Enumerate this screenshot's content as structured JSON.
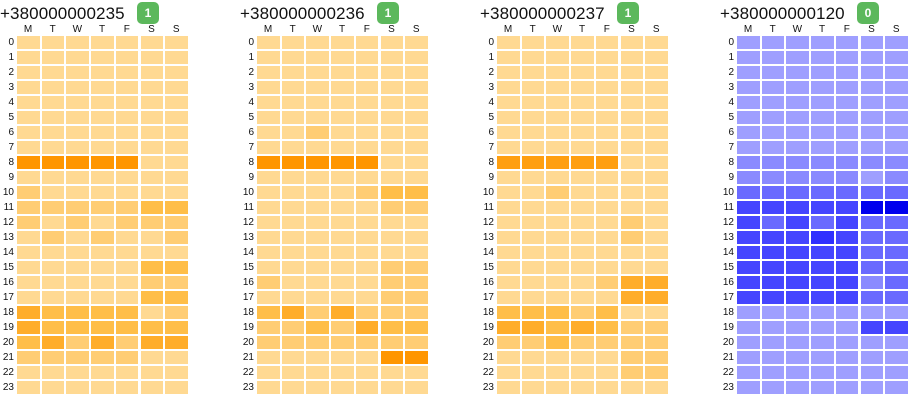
{
  "days": [
    "M",
    "T",
    "W",
    "T",
    "F",
    "S",
    "S"
  ],
  "hours": [
    "0",
    "1",
    "2",
    "3",
    "4",
    "5",
    "6",
    "7",
    "8",
    "9",
    "10",
    "11",
    "12",
    "13",
    "14",
    "15",
    "16",
    "17",
    "18",
    "19",
    "20",
    "21",
    "22",
    "23"
  ],
  "panels": [
    {
      "phone": "+380000000235",
      "count": "1",
      "badge_color": "#5cb85c",
      "palette": "orange",
      "levels": [
        [
          1,
          1,
          1,
          1,
          1,
          1,
          1
        ],
        [
          1,
          1,
          1,
          1,
          1,
          1,
          1
        ],
        [
          1,
          1,
          1,
          1,
          1,
          1,
          1
        ],
        [
          1,
          1,
          1,
          1,
          1,
          1,
          1
        ],
        [
          1,
          1,
          1,
          1,
          1,
          1,
          1
        ],
        [
          1,
          1,
          1,
          1,
          1,
          1,
          1
        ],
        [
          1,
          1,
          1,
          1,
          1,
          1,
          1
        ],
        [
          1,
          1,
          1,
          1,
          1,
          1,
          1
        ],
        [
          6,
          6,
          6,
          6,
          6,
          1,
          1
        ],
        [
          1,
          1,
          1,
          1,
          1,
          1,
          1
        ],
        [
          2,
          1,
          1,
          1,
          1,
          1,
          1
        ],
        [
          2,
          2,
          2,
          2,
          2,
          3,
          3
        ],
        [
          2,
          1,
          2,
          1,
          2,
          2,
          2
        ],
        [
          1,
          2,
          1,
          2,
          1,
          1,
          2
        ],
        [
          1,
          1,
          1,
          1,
          1,
          1,
          1
        ],
        [
          1,
          1,
          1,
          1,
          1,
          3,
          3
        ],
        [
          1,
          1,
          1,
          1,
          1,
          2,
          2
        ],
        [
          1,
          1,
          1,
          1,
          1,
          3,
          3
        ],
        [
          4,
          3,
          3,
          3,
          3,
          1,
          2
        ],
        [
          4,
          3,
          3,
          3,
          3,
          3,
          3
        ],
        [
          3,
          4,
          2,
          4,
          2,
          4,
          4
        ],
        [
          2,
          2,
          2,
          2,
          2,
          1,
          1
        ],
        [
          1,
          1,
          1,
          1,
          1,
          1,
          1
        ],
        [
          1,
          1,
          1,
          1,
          1,
          1,
          1
        ]
      ]
    },
    {
      "phone": "+380000000236",
      "count": "1",
      "badge_color": "#5cb85c",
      "palette": "orange",
      "levels": [
        [
          1,
          1,
          1,
          1,
          1,
          1,
          1
        ],
        [
          1,
          1,
          1,
          1,
          1,
          1,
          1
        ],
        [
          1,
          1,
          1,
          1,
          1,
          1,
          1
        ],
        [
          1,
          1,
          1,
          1,
          1,
          1,
          1
        ],
        [
          1,
          1,
          1,
          1,
          1,
          1,
          1
        ],
        [
          1,
          1,
          1,
          1,
          1,
          1,
          1
        ],
        [
          1,
          1,
          2,
          1,
          1,
          1,
          1
        ],
        [
          1,
          1,
          1,
          1,
          1,
          1,
          1
        ],
        [
          6,
          6,
          6,
          6,
          6,
          1,
          1
        ],
        [
          1,
          1,
          1,
          1,
          1,
          1,
          1
        ],
        [
          1,
          1,
          1,
          1,
          2,
          3,
          3
        ],
        [
          1,
          1,
          1,
          1,
          1,
          2,
          2
        ],
        [
          1,
          1,
          1,
          1,
          1,
          1,
          1
        ],
        [
          1,
          1,
          1,
          1,
          1,
          1,
          1
        ],
        [
          1,
          1,
          1,
          1,
          1,
          1,
          1
        ],
        [
          1,
          1,
          1,
          1,
          1,
          2,
          2
        ],
        [
          2,
          1,
          1,
          1,
          1,
          2,
          2
        ],
        [
          1,
          1,
          1,
          1,
          1,
          2,
          2
        ],
        [
          3,
          4,
          2,
          4,
          2,
          2,
          2
        ],
        [
          2,
          2,
          3,
          2,
          4,
          3,
          3
        ],
        [
          2,
          2,
          2,
          2,
          2,
          2,
          2
        ],
        [
          1,
          1,
          1,
          1,
          1,
          6,
          6
        ],
        [
          1,
          1,
          1,
          1,
          1,
          1,
          1
        ],
        [
          1,
          1,
          1,
          1,
          1,
          1,
          1
        ]
      ]
    },
    {
      "phone": "+380000000237",
      "count": "1",
      "badge_color": "#5cb85c",
      "palette": "orange",
      "levels": [
        [
          1,
          1,
          1,
          1,
          1,
          1,
          1
        ],
        [
          1,
          1,
          1,
          1,
          1,
          1,
          1
        ],
        [
          1,
          1,
          1,
          1,
          1,
          1,
          1
        ],
        [
          1,
          1,
          1,
          1,
          1,
          1,
          1
        ],
        [
          1,
          1,
          1,
          1,
          1,
          1,
          1
        ],
        [
          1,
          1,
          1,
          1,
          1,
          1,
          1
        ],
        [
          1,
          1,
          1,
          1,
          1,
          1,
          1
        ],
        [
          1,
          1,
          1,
          1,
          1,
          1,
          1
        ],
        [
          5,
          5,
          5,
          5,
          5,
          1,
          1
        ],
        [
          1,
          1,
          1,
          1,
          1,
          1,
          1
        ],
        [
          1,
          1,
          2,
          1,
          1,
          1,
          1
        ],
        [
          1,
          1,
          1,
          1,
          1,
          1,
          1
        ],
        [
          1,
          1,
          1,
          1,
          1,
          2,
          1
        ],
        [
          1,
          1,
          1,
          1,
          1,
          2,
          1
        ],
        [
          1,
          1,
          1,
          1,
          1,
          1,
          1
        ],
        [
          1,
          1,
          1,
          1,
          1,
          1,
          1
        ],
        [
          1,
          1,
          1,
          1,
          2,
          4,
          4
        ],
        [
          1,
          1,
          1,
          1,
          1,
          4,
          4
        ],
        [
          3,
          3,
          3,
          2,
          3,
          1,
          1
        ],
        [
          4,
          4,
          3,
          4,
          3,
          2,
          2
        ],
        [
          2,
          2,
          3,
          2,
          2,
          2,
          2
        ],
        [
          1,
          1,
          1,
          1,
          1,
          2,
          2
        ],
        [
          1,
          1,
          1,
          1,
          1,
          2,
          2
        ],
        [
          1,
          1,
          1,
          1,
          1,
          1,
          1
        ]
      ]
    },
    {
      "phone": "+380000000120",
      "count": "0",
      "badge_color": "#5cb85c",
      "palette": "blue",
      "levels": [
        [
          1,
          1,
          1,
          1,
          1,
          1,
          1
        ],
        [
          1,
          1,
          1,
          1,
          1,
          1,
          1
        ],
        [
          1,
          1,
          1,
          1,
          1,
          1,
          1
        ],
        [
          1,
          1,
          1,
          1,
          1,
          1,
          1
        ],
        [
          1,
          1,
          1,
          1,
          1,
          1,
          1
        ],
        [
          1,
          1,
          1,
          1,
          1,
          1,
          1
        ],
        [
          1,
          1,
          1,
          1,
          1,
          1,
          1
        ],
        [
          1,
          1,
          1,
          1,
          1,
          1,
          1
        ],
        [
          2,
          2,
          2,
          2,
          2,
          2,
          2
        ],
        [
          2,
          2,
          2,
          2,
          2,
          1,
          2
        ],
        [
          3,
          3,
          3,
          3,
          3,
          3,
          3
        ],
        [
          4,
          4,
          4,
          4,
          4,
          6,
          6
        ],
        [
          4,
          3,
          4,
          3,
          4,
          3,
          3
        ],
        [
          4,
          4,
          4,
          5,
          4,
          3,
          3
        ],
        [
          4,
          4,
          4,
          4,
          4,
          3,
          3
        ],
        [
          4,
          4,
          4,
          4,
          4,
          3,
          3
        ],
        [
          4,
          4,
          4,
          4,
          4,
          2,
          3
        ],
        [
          4,
          4,
          4,
          4,
          4,
          3,
          3
        ],
        [
          1,
          1,
          1,
          1,
          1,
          1,
          1
        ],
        [
          1,
          1,
          1,
          1,
          1,
          4,
          4
        ],
        [
          1,
          1,
          1,
          1,
          1,
          1,
          1
        ],
        [
          1,
          1,
          1,
          1,
          1,
          1,
          1
        ],
        [
          1,
          1,
          1,
          1,
          1,
          1,
          1
        ],
        [
          1,
          1,
          1,
          1,
          1,
          1,
          1
        ]
      ]
    }
  ],
  "colors": {
    "orange": [
      "#ffe0a0",
      "#ffd992",
      "#ffcd74",
      "#ffbe48",
      "#ffad2a",
      "#ff9f10",
      "#ff9600"
    ],
    "blue": [
      "#aaaaff",
      "#9f9fff",
      "#8a8aff",
      "#6a6aff",
      "#4545ff",
      "#3030ff",
      "#0000ee"
    ],
    "grid_line": "#ffffff"
  }
}
